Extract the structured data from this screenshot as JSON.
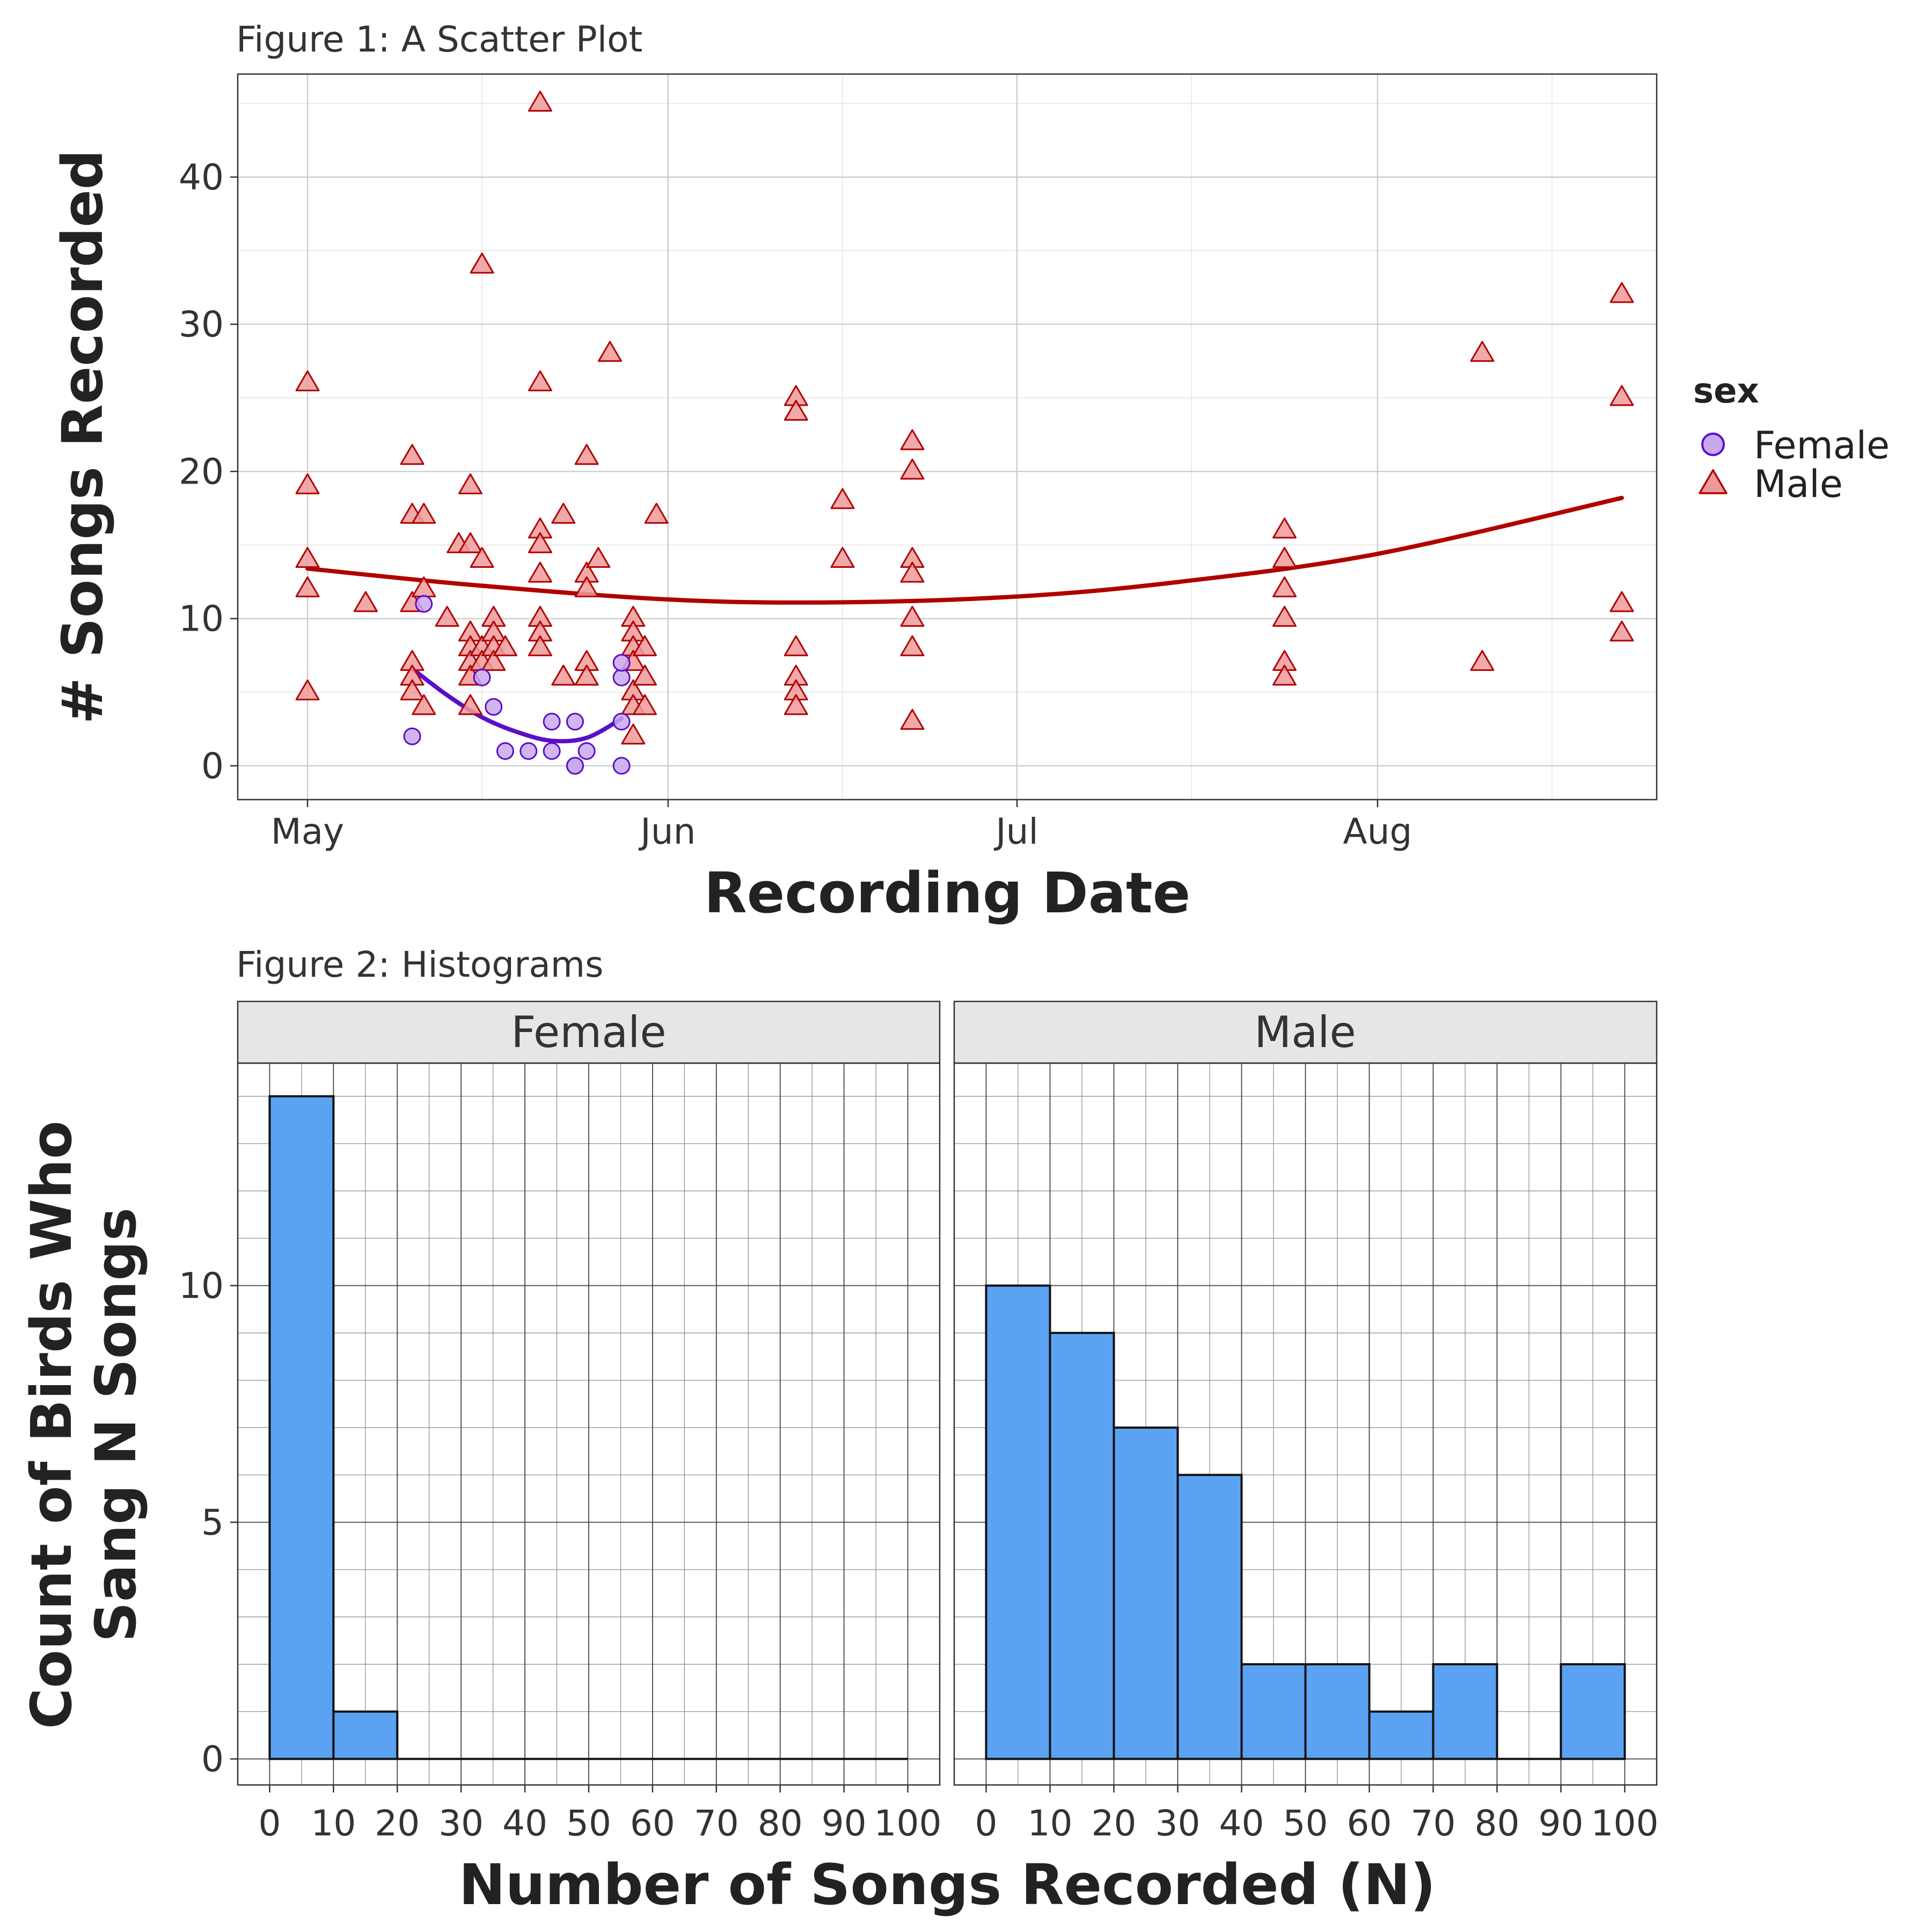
{
  "chart_data": [
    {
      "type": "scatter",
      "title": "Figure 1: A Scatter Plot",
      "xlabel": "Recording Date",
      "ylabel": "# Songs Recorded",
      "x_ticks": [
        "May",
        "Jun",
        "Jul",
        "Aug"
      ],
      "x_range": [
        "2019-04-25",
        "2019-08-25"
      ],
      "y_ticks": [
        0,
        10,
        20,
        30,
        40
      ],
      "ylim": [
        -2.3,
        47
      ],
      "grid": true,
      "legend": {
        "title": "sex",
        "position": "right",
        "entries": [
          "Female",
          "Male"
        ]
      },
      "series": [
        {
          "name": "Female",
          "shape": "circle",
          "color": "#5a0fc8",
          "fill": "#c9a8ee",
          "points": [
            [
              "2019-05-10",
              2
            ],
            [
              "2019-05-11",
              11
            ],
            [
              "2019-05-16",
              6
            ],
            [
              "2019-05-17",
              4
            ],
            [
              "2019-05-18",
              1
            ],
            [
              "2019-05-20",
              1
            ],
            [
              "2019-05-22",
              1
            ],
            [
              "2019-05-22",
              3
            ],
            [
              "2019-05-24",
              3
            ],
            [
              "2019-05-24",
              0
            ],
            [
              "2019-05-24",
              0
            ],
            [
              "2019-05-25",
              1
            ],
            [
              "2019-05-28",
              0
            ],
            [
              "2019-05-28",
              3
            ],
            [
              "2019-05-28",
              6
            ],
            [
              "2019-05-28",
              7
            ]
          ],
          "trend": [
            [
              "2019-05-10",
              6.6
            ],
            [
              "2019-05-13",
              4.8
            ],
            [
              "2019-05-16",
              3.3
            ],
            [
              "2019-05-19",
              2.3
            ],
            [
              "2019-05-22",
              1.7
            ],
            [
              "2019-05-25",
              1.9
            ],
            [
              "2019-05-28",
              3.2
            ]
          ]
        },
        {
          "name": "Male",
          "shape": "triangle",
          "color": "#b00000",
          "fill": "#ee9a9a",
          "points": [
            [
              "2019-05-01",
              26
            ],
            [
              "2019-05-01",
              19
            ],
            [
              "2019-05-01",
              14
            ],
            [
              "2019-05-01",
              12
            ],
            [
              "2019-05-01",
              5
            ],
            [
              "2019-05-06",
              11
            ],
            [
              "2019-05-10",
              21
            ],
            [
              "2019-05-10",
              17
            ],
            [
              "2019-05-10",
              11
            ],
            [
              "2019-05-10",
              7
            ],
            [
              "2019-05-10",
              6
            ],
            [
              "2019-05-10",
              5
            ],
            [
              "2019-05-11",
              17
            ],
            [
              "2019-05-11",
              12
            ],
            [
              "2019-05-11",
              4
            ],
            [
              "2019-05-13",
              10
            ],
            [
              "2019-05-14",
              15
            ],
            [
              "2019-05-15",
              19
            ],
            [
              "2019-05-15",
              15
            ],
            [
              "2019-05-15",
              9
            ],
            [
              "2019-05-15",
              8
            ],
            [
              "2019-05-15",
              7
            ],
            [
              "2019-05-15",
              6
            ],
            [
              "2019-05-15",
              4
            ],
            [
              "2019-05-16",
              34
            ],
            [
              "2019-05-16",
              14
            ],
            [
              "2019-05-16",
              8
            ],
            [
              "2019-05-16",
              7
            ],
            [
              "2019-05-17",
              10
            ],
            [
              "2019-05-17",
              9
            ],
            [
              "2019-05-17",
              8
            ],
            [
              "2019-05-17",
              7
            ],
            [
              "2019-05-18",
              8
            ],
            [
              "2019-05-21",
              45
            ],
            [
              "2019-05-21",
              26
            ],
            [
              "2019-05-21",
              16
            ],
            [
              "2019-05-21",
              15
            ],
            [
              "2019-05-21",
              13
            ],
            [
              "2019-05-21",
              10
            ],
            [
              "2019-05-21",
              9
            ],
            [
              "2019-05-21",
              8
            ],
            [
              "2019-05-23",
              17
            ],
            [
              "2019-05-23",
              6
            ],
            [
              "2019-05-25",
              21
            ],
            [
              "2019-05-25",
              13
            ],
            [
              "2019-05-25",
              12
            ],
            [
              "2019-05-25",
              7
            ],
            [
              "2019-05-25",
              6
            ],
            [
              "2019-05-26",
              14
            ],
            [
              "2019-05-27",
              28
            ],
            [
              "2019-05-29",
              10
            ],
            [
              "2019-05-29",
              9
            ],
            [
              "2019-05-29",
              8
            ],
            [
              "2019-05-29",
              7
            ],
            [
              "2019-05-29",
              5
            ],
            [
              "2019-05-29",
              4
            ],
            [
              "2019-05-29",
              2
            ],
            [
              "2019-05-30",
              8
            ],
            [
              "2019-05-30",
              6
            ],
            [
              "2019-05-30",
              4
            ],
            [
              "2019-05-31",
              17
            ],
            [
              "2019-06-12",
              25
            ],
            [
              "2019-06-12",
              24
            ],
            [
              "2019-06-12",
              8
            ],
            [
              "2019-06-12",
              6
            ],
            [
              "2019-06-12",
              5
            ],
            [
              "2019-06-12",
              4
            ],
            [
              "2019-06-16",
              18
            ],
            [
              "2019-06-16",
              14
            ],
            [
              "2019-06-22",
              22
            ],
            [
              "2019-06-22",
              20
            ],
            [
              "2019-06-22",
              14
            ],
            [
              "2019-06-22",
              13
            ],
            [
              "2019-06-22",
              10
            ],
            [
              "2019-06-22",
              8
            ],
            [
              "2019-06-22",
              3
            ],
            [
              "2019-07-24",
              16
            ],
            [
              "2019-07-24",
              14
            ],
            [
              "2019-07-24",
              12
            ],
            [
              "2019-07-24",
              10
            ],
            [
              "2019-07-24",
              7
            ],
            [
              "2019-07-24",
              6
            ],
            [
              "2019-08-10",
              28
            ],
            [
              "2019-08-10",
              7
            ],
            [
              "2019-08-22",
              32
            ],
            [
              "2019-08-22",
              25
            ],
            [
              "2019-08-22",
              11
            ],
            [
              "2019-08-22",
              9
            ]
          ],
          "trend": [
            [
              "2019-05-01",
              13.4
            ],
            [
              "2019-05-15",
              12.3
            ],
            [
              "2019-06-01",
              11.3
            ],
            [
              "2019-06-15",
              11.1
            ],
            [
              "2019-07-01",
              11.5
            ],
            [
              "2019-07-15",
              12.5
            ],
            [
              "2019-08-01",
              14.4
            ],
            [
              "2019-08-22",
              18.2
            ]
          ]
        }
      ]
    },
    {
      "type": "bar",
      "title": "Figure 2: Histograms",
      "xlabel": "Number of Songs Recorded (N)",
      "ylabel_lines": [
        "Count of Birds Who",
        "Sang N Songs"
      ],
      "x_ticks": [
        0,
        10,
        20,
        30,
        40,
        50,
        60,
        70,
        80,
        90,
        100
      ],
      "y_ticks": [
        0,
        5,
        10
      ],
      "ylim": [
        -0.55,
        14.7
      ],
      "bin_width": 10,
      "bar_color": "#5ba3f2",
      "grid": true,
      "panels": [
        {
          "label": "Female",
          "bins": [
            0,
            10,
            20,
            30,
            40,
            50,
            60,
            70,
            80,
            90
          ],
          "values": [
            14,
            1,
            0,
            0,
            0,
            0,
            0,
            0,
            0,
            0
          ]
        },
        {
          "label": "Male",
          "bins": [
            0,
            10,
            20,
            30,
            40,
            50,
            60,
            70,
            80,
            90
          ],
          "values": [
            10,
            9,
            7,
            6,
            2,
            2,
            1,
            2,
            0,
            2
          ]
        }
      ]
    }
  ]
}
